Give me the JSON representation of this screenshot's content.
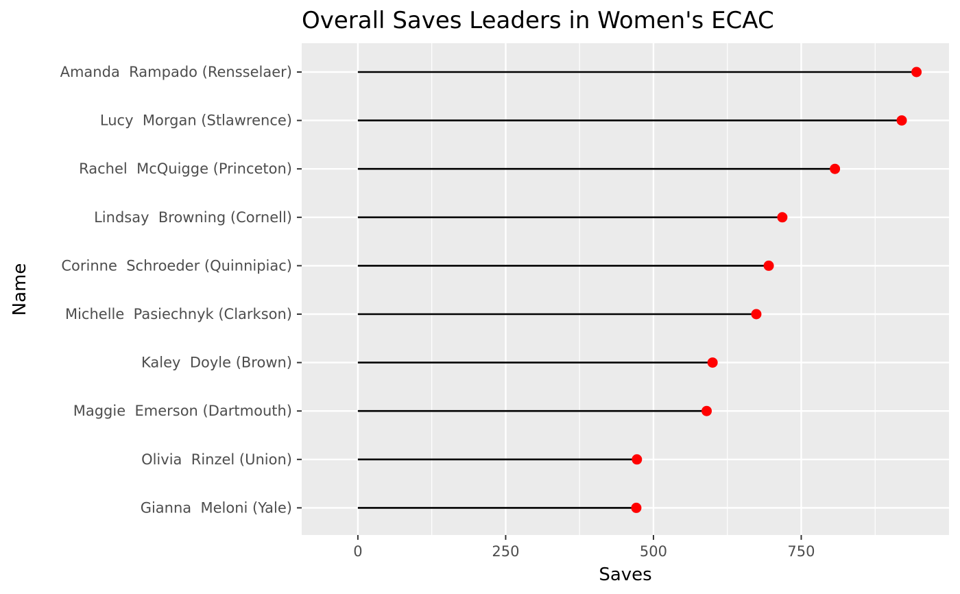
{
  "chart_data": {
    "type": "lollipop",
    "title": "Overall Saves Leaders in Women's ECAC",
    "xlabel": "Saves",
    "ylabel": "Name",
    "xlim": [
      -95,
      1000
    ],
    "x_ticks": [
      0,
      250,
      500,
      750
    ],
    "grid": true,
    "categories": [
      "Amanda  Rampado (Rensselaer)",
      "Lucy  Morgan (Stlawrence)",
      "Rachel  McQuigge (Princeton)",
      "Lindsay  Browning (Cornell)",
      "Corinne  Schroeder (Quinnipiac)",
      "Michelle  Pasiechnyk (Clarkson)",
      "Kaley  Doyle (Brown)",
      "Maggie  Emerson (Dartmouth)",
      "Olivia  Rinzel (Union)",
      "Gianna  Meloni (Yale)"
    ],
    "values": [
      945,
      920,
      807,
      718,
      695,
      674,
      600,
      590,
      472,
      471
    ],
    "colors": {
      "panel": "#ebebeb",
      "grid": "#ffffff",
      "segment": "#000000",
      "point": "#ff0000"
    }
  }
}
